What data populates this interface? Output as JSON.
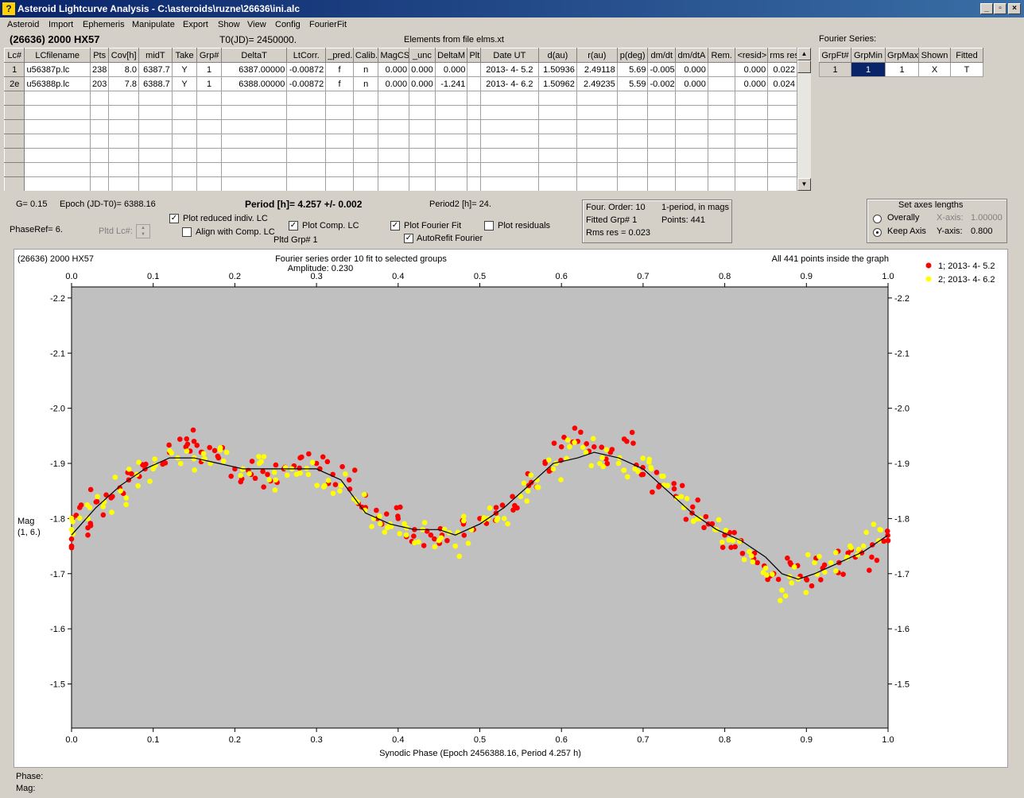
{
  "window": {
    "title": "Asteroid Lightcurve Analysis - C:\\asteroids\\ruzne\\26636\\ini.alc",
    "icon": "app-icon"
  },
  "menu": [
    "Asteroid",
    "Import",
    "Ephemeris",
    "Manipulate",
    "Export",
    "Show",
    "View",
    "Config",
    "FourierFit"
  ],
  "header": {
    "asteroid": "(26636) 2000 HX57",
    "t0": "T0(JD)= 2450000.",
    "elements": "Elements from file elms.xt",
    "fourier_label": "Fourier Series:"
  },
  "lc_table": {
    "columns": [
      "Lc#",
      "LCfilename",
      "Pts",
      "Cov[h]",
      "midT",
      "Take",
      "Grp#",
      "DeltaT",
      "LtCorr.",
      "_pred.",
      "Calib.",
      "MagCS",
      "_unc",
      "DeltaM",
      "Plt",
      "Date UT",
      "d(au)",
      "r(au)",
      "p(deg)",
      "dm/dt",
      "dm/dtA",
      "Rem.",
      "<resid>",
      "rms res"
    ],
    "rows": [
      [
        "1",
        "u56387p.lc",
        "238",
        "8.0",
        "6387.7",
        "Y",
        "1",
        "6387.00000",
        "-0.00872",
        "f",
        "n",
        "0.000",
        "0.000",
        "0.000",
        "",
        "2013- 4- 5.2",
        "1.50936",
        "2.49118",
        "5.69",
        "-0.005",
        "0.000",
        "",
        "0.000",
        "0.022"
      ],
      [
        "2e",
        "u56388p.lc",
        "203",
        "7.8",
        "6388.7",
        "Y",
        "1",
        "6388.00000",
        "-0.00872",
        "f",
        "n",
        "0.000",
        "0.000",
        "-1.241",
        "",
        "2013- 4- 6.2",
        "1.50962",
        "2.49235",
        "5.59",
        "-0.002",
        "0.000",
        "",
        "0.000",
        "0.024"
      ]
    ],
    "empty_rows": 7
  },
  "fourier_table": {
    "columns": [
      "GrpFt#",
      "GrpMin",
      "GrpMax",
      "Shown",
      "Fitted"
    ],
    "row": [
      "1",
      "1",
      "1",
      "X",
      "T"
    ]
  },
  "params": {
    "g": "G= 0.15",
    "epoch": "Epoch (JD-T0)= 6388.16",
    "period": "Period [h]= 4.257 +/- 0.002",
    "period2": "Period2 [h]= 24.",
    "phaseref": "PhaseRef= 6.",
    "pltd_lc": "Pltd Lc#:",
    "pltd_grp": "Pltd Grp#  1"
  },
  "checkboxes": {
    "reduced": {
      "label": "Plot reduced indiv. LC",
      "checked": true
    },
    "align": {
      "label": "Align with Comp. LC",
      "checked": false
    },
    "comp": {
      "label": "Plot Comp. LC",
      "checked": true
    },
    "fourier": {
      "label": "Plot Fourier Fit",
      "checked": true
    },
    "residuals": {
      "label": "Plot residuals",
      "checked": false
    },
    "autorefit": {
      "label": "AutoRefit Fourier",
      "checked": true
    }
  },
  "fit_info": {
    "order": "Four. Order: 10",
    "mode": "1-period, in mags",
    "fitted": "Fitted Grp# 1",
    "points": "Points: 441",
    "rms": "Rms res     = 0.023"
  },
  "axes_box": {
    "title": "Set axes lengths",
    "overall": "Overally",
    "keep": "Keep Axis",
    "xlabel": "X-axis:",
    "xval": "1.00000",
    "ylabel": "Y-axis:",
    "yval": "0.800"
  },
  "plot": {
    "name": "(26636) 2000 HX57",
    "subtitle1": "Fourier series order 10 fit to selected groups",
    "subtitle2": "Amplitude: 0.230",
    "inside": "All 441 points inside the graph",
    "xlabel": "Synodic Phase (Epoch 2456388.16, Period 4.257 h)",
    "ylabel1": "Mag",
    "ylabel2": "(1, 6.)"
  },
  "status": {
    "phase": "Phase:",
    "mag": "Mag:"
  },
  "colors": {
    "red": "#ff0000",
    "yellow": "#ffff00",
    "plot_bg": "#c0c0c0"
  },
  "chart_data": {
    "type": "scatter",
    "xlim": [
      0,
      1
    ],
    "ylim": [
      -2.22,
      -1.42
    ],
    "y_inverted": true,
    "xticks": [
      "0.0",
      "0.1",
      "0.2",
      "0.3",
      "0.4",
      "0.5",
      "0.6",
      "0.7",
      "0.8",
      "0.9",
      "1.0"
    ],
    "yticks": [
      "-2.2",
      "-2.1",
      "-2.0",
      "-1.9",
      "-1.8",
      "-1.7",
      "-1.6",
      "-1.5"
    ],
    "legend": "top-right",
    "series": [
      {
        "name": "1; 2013- 4- 5.2",
        "color": "#ff0000",
        "points": [
          [
            0.0,
            -1.75
          ],
          [
            0.01,
            -1.82
          ],
          [
            0.02,
            -1.77
          ],
          [
            0.03,
            -1.83
          ],
          [
            0.05,
            -1.84
          ],
          [
            0.07,
            -1.87
          ],
          [
            0.09,
            -1.89
          ],
          [
            0.12,
            -1.92
          ],
          [
            0.14,
            -1.93
          ],
          [
            0.15,
            -1.94
          ],
          [
            0.16,
            -1.92
          ],
          [
            0.18,
            -1.91
          ],
          [
            0.2,
            -1.89
          ],
          [
            0.22,
            -1.88
          ],
          [
            0.24,
            -1.88
          ],
          [
            0.26,
            -1.89
          ],
          [
            0.28,
            -1.91
          ],
          [
            0.3,
            -1.9
          ],
          [
            0.32,
            -1.88
          ],
          [
            0.34,
            -1.87
          ],
          [
            0.36,
            -1.82
          ],
          [
            0.38,
            -1.79
          ],
          [
            0.4,
            -1.8
          ],
          [
            0.42,
            -1.78
          ],
          [
            0.44,
            -1.77
          ],
          [
            0.46,
            -1.76
          ],
          [
            0.48,
            -1.79
          ],
          [
            0.5,
            -1.8
          ],
          [
            0.52,
            -1.82
          ],
          [
            0.54,
            -1.84
          ],
          [
            0.56,
            -1.86
          ],
          [
            0.58,
            -1.9
          ],
          [
            0.6,
            -1.93
          ],
          [
            0.62,
            -1.94
          ],
          [
            0.64,
            -1.93
          ],
          [
            0.66,
            -1.92
          ],
          [
            0.68,
            -1.94
          ],
          [
            0.7,
            -1.88
          ],
          [
            0.72,
            -1.86
          ],
          [
            0.74,
            -1.84
          ],
          [
            0.76,
            -1.81
          ],
          [
            0.78,
            -1.79
          ],
          [
            0.8,
            -1.77
          ],
          [
            0.82,
            -1.76
          ],
          [
            0.84,
            -1.72
          ],
          [
            0.86,
            -1.7
          ],
          [
            0.88,
            -1.72
          ],
          [
            0.9,
            -1.69
          ],
          [
            0.92,
            -1.71
          ],
          [
            0.94,
            -1.72
          ],
          [
            0.96,
            -1.73
          ],
          [
            0.98,
            -1.73
          ],
          [
            1.0,
            -1.76
          ]
        ]
      },
      {
        "name": "2; 2013- 4- 6.2",
        "color": "#ffff00",
        "points": [
          [
            0.0,
            -1.78
          ],
          [
            0.02,
            -1.8
          ],
          [
            0.04,
            -1.83
          ],
          [
            0.06,
            -1.85
          ],
          [
            0.08,
            -1.88
          ],
          [
            0.1,
            -1.89
          ],
          [
            0.13,
            -1.91
          ],
          [
            0.15,
            -1.91
          ],
          [
            0.17,
            -1.9
          ],
          [
            0.19,
            -1.92
          ],
          [
            0.21,
            -1.89
          ],
          [
            0.23,
            -1.9
          ],
          [
            0.25,
            -1.87
          ],
          [
            0.27,
            -1.89
          ],
          [
            0.29,
            -1.88
          ],
          [
            0.31,
            -1.86
          ],
          [
            0.33,
            -1.86
          ],
          [
            0.35,
            -1.83
          ],
          [
            0.37,
            -1.8
          ],
          [
            0.39,
            -1.79
          ],
          [
            0.41,
            -1.77
          ],
          [
            0.43,
            -1.78
          ],
          [
            0.45,
            -1.76
          ],
          [
            0.47,
            -1.75
          ],
          [
            0.49,
            -1.78
          ],
          [
            0.51,
            -1.8
          ],
          [
            0.53,
            -1.8
          ],
          [
            0.55,
            -1.84
          ],
          [
            0.57,
            -1.87
          ],
          [
            0.59,
            -1.89
          ],
          [
            0.61,
            -1.93
          ],
          [
            0.63,
            -1.92
          ],
          [
            0.65,
            -1.91
          ],
          [
            0.67,
            -1.9
          ],
          [
            0.69,
            -1.89
          ],
          [
            0.71,
            -1.89
          ],
          [
            0.73,
            -1.86
          ],
          [
            0.75,
            -1.82
          ],
          [
            0.77,
            -1.8
          ],
          [
            0.79,
            -1.78
          ],
          [
            0.81,
            -1.76
          ],
          [
            0.83,
            -1.74
          ],
          [
            0.85,
            -1.71
          ],
          [
            0.87,
            -1.67
          ],
          [
            0.89,
            -1.69
          ],
          [
            0.91,
            -1.72
          ],
          [
            0.93,
            -1.72
          ],
          [
            0.95,
            -1.73
          ],
          [
            0.97,
            -1.75
          ],
          [
            0.99,
            -1.78
          ]
        ]
      }
    ],
    "fit": {
      "name": "Fourier fit",
      "points": [
        [
          0.0,
          -1.77
        ],
        [
          0.03,
          -1.82
        ],
        [
          0.06,
          -1.86
        ],
        [
          0.09,
          -1.89
        ],
        [
          0.12,
          -1.91
        ],
        [
          0.15,
          -1.91
        ],
        [
          0.18,
          -1.9
        ],
        [
          0.21,
          -1.89
        ],
        [
          0.24,
          -1.89
        ],
        [
          0.27,
          -1.89
        ],
        [
          0.3,
          -1.89
        ],
        [
          0.33,
          -1.87
        ],
        [
          0.36,
          -1.81
        ],
        [
          0.39,
          -1.79
        ],
        [
          0.42,
          -1.78
        ],
        [
          0.45,
          -1.78
        ],
        [
          0.47,
          -1.77
        ],
        [
          0.5,
          -1.79
        ],
        [
          0.53,
          -1.82
        ],
        [
          0.56,
          -1.86
        ],
        [
          0.59,
          -1.9
        ],
        [
          0.62,
          -1.91
        ],
        [
          0.64,
          -1.92
        ],
        [
          0.67,
          -1.91
        ],
        [
          0.7,
          -1.89
        ],
        [
          0.73,
          -1.85
        ],
        [
          0.76,
          -1.81
        ],
        [
          0.79,
          -1.78
        ],
        [
          0.82,
          -1.76
        ],
        [
          0.85,
          -1.73
        ],
        [
          0.87,
          -1.7
        ],
        [
          0.89,
          -1.69
        ],
        [
          0.91,
          -1.7
        ],
        [
          0.94,
          -1.72
        ],
        [
          0.97,
          -1.74
        ],
        [
          1.0,
          -1.77
        ]
      ]
    }
  }
}
